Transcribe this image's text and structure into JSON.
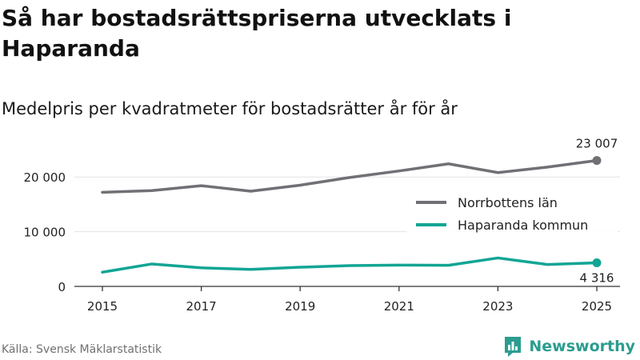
{
  "title": "Så har bostadsrättspriserna utvecklats i Haparanda",
  "subtitle": "Medelpris per kvadratmeter för bostadsrätter år för år",
  "source": "Källa: Svensk Mäklarstatistik",
  "brand": {
    "name": "Newsworthy",
    "logo_icon": "bar-chart-bubble-icon"
  },
  "colors": {
    "norrbotten": "#707075",
    "haparanda": "#12a594",
    "grid": "#e3e3e3",
    "axis": "#333333",
    "brand": "#2a9d8f"
  },
  "chart_data": {
    "type": "line",
    "x": [
      2015,
      2016,
      2017,
      2018,
      2019,
      2020,
      2021,
      2022,
      2023,
      2024,
      2025
    ],
    "x_tick_values": [
      2015,
      2017,
      2019,
      2021,
      2023,
      2025
    ],
    "x_tick_labels": [
      "2015",
      "2017",
      "2019",
      "2021",
      "2023",
      "2025"
    ],
    "y_tick_values": [
      0,
      10000,
      20000
    ],
    "y_tick_labels": [
      "0",
      "10 000",
      "20 000"
    ],
    "ylim": [
      0,
      25000
    ],
    "grid": true,
    "legend_position": "right",
    "series": [
      {
        "name": "Norrbottens län",
        "values": [
          17200,
          17500,
          18400,
          17400,
          18500,
          19900,
          21100,
          22400,
          20800,
          21800,
          23007
        ],
        "end_label": "23 007"
      },
      {
        "name": "Haparanda kommun",
        "values": [
          2600,
          4100,
          3400,
          3100,
          3500,
          3800,
          3900,
          3850,
          5200,
          4000,
          4316
        ],
        "end_label": "4 316"
      }
    ]
  }
}
